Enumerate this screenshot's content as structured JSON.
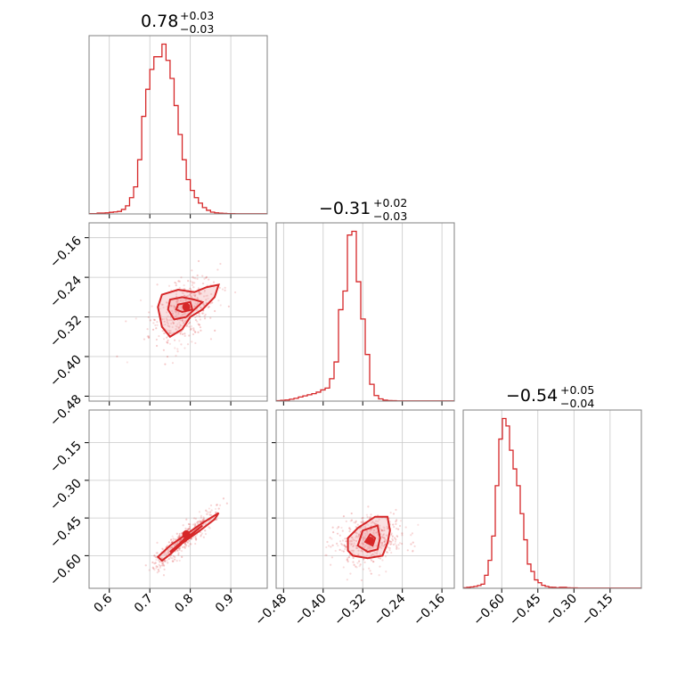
{
  "colors": {
    "accent": "#d62728",
    "frame": "#808080",
    "grid": "#c8c8c8"
  },
  "chart_data": [
    {
      "type": "histogram",
      "panel": "p1",
      "title_value": "0.78",
      "title_plus": "+0.03",
      "title_minus": "−0.03",
      "xlim": [
        0.55,
        0.99
      ],
      "ticks": [
        0.6,
        0.7,
        0.8,
        0.9
      ],
      "tick_labels": [
        "0.6",
        "0.7",
        "0.8",
        "0.9"
      ],
      "bin_start": 0.55,
      "bin_width": 0.01,
      "values": [
        0.2,
        0.2,
        0.5,
        0.5,
        0.6,
        0.9,
        1.1,
        1.4,
        2.5,
        4.5,
        9,
        15,
        30,
        54,
        69,
        80,
        87,
        87,
        94,
        85,
        75,
        60,
        44,
        30,
        19,
        13,
        9,
        6,
        3.5,
        2,
        1,
        0.6,
        0.4,
        0.3,
        0.2,
        0.2,
        0.1,
        0.1,
        0.1,
        0.1,
        0.1,
        0.1,
        0.1,
        0.1
      ]
    },
    {
      "type": "histogram",
      "panel": "p2",
      "title_value": "−0.31",
      "title_plus": "+0.02",
      "title_minus": "−0.03",
      "xlim": [
        -0.495,
        -0.135
      ],
      "ticks": [
        -0.48,
        -0.4,
        -0.32,
        -0.24,
        -0.16
      ],
      "tick_labels": [
        "−0.48",
        "−0.40",
        "−0.32",
        "−0.24",
        "−0.16"
      ],
      "bin_start": -0.495,
      "bin_width": 0.009,
      "values": [
        0.2,
        0.4,
        0.6,
        1,
        1.5,
        2.2,
        2.8,
        3.4,
        4,
        4.8,
        6,
        7,
        12,
        21,
        49,
        59,
        89,
        91,
        64,
        44,
        25,
        9,
        3,
        1.2,
        0.5,
        0.3,
        0.2,
        0.1,
        0.1,
        0.1,
        0.1,
        0.1,
        0.1,
        0.1,
        0.1,
        0.1,
        0.1,
        0.1,
        0.1,
        0.1
      ]
    },
    {
      "type": "histogram",
      "panel": "p3",
      "title_value": "−0.54",
      "title_plus": "+0.05",
      "title_minus": "−0.04",
      "xlim": [
        -0.76,
        -0.02
      ],
      "ticks": [
        -0.6,
        -0.45,
        -0.3,
        -0.15
      ],
      "tick_labels": [
        "−0.60",
        "−0.45",
        "−0.30",
        "−0.15"
      ],
      "bin_start": -0.76,
      "bin_width": 0.0148,
      "values": [
        0.3,
        0.5,
        0.7,
        1,
        1.5,
        2.2,
        7,
        15,
        28,
        55,
        80,
        91,
        87,
        74,
        64,
        55,
        40,
        26,
        13,
        9,
        4.5,
        3,
        1.6,
        1,
        0.6,
        0.5,
        0.3,
        0.5,
        0.5,
        0.3,
        0.2,
        0.2,
        0.1,
        0.1,
        0.1,
        0.1,
        0.1,
        0.1,
        0.1,
        0.1,
        0.1,
        0.1,
        0.1,
        0.1,
        0.1,
        0.1,
        0.1,
        0.1,
        0.1,
        0.1
      ]
    },
    {
      "type": "scatter",
      "panel": "p21",
      "xlim": [
        0.55,
        0.99
      ],
      "ylim": [
        -0.49,
        -0.13
      ],
      "yticks": [
        -0.16,
        -0.24,
        -0.32,
        -0.4,
        -0.48
      ],
      "ytick_labels": [
        "−0.16",
        "−0.24",
        "−0.32",
        "−0.40",
        "−0.48"
      ],
      "center": [
        0.78,
        -0.31
      ],
      "spread": [
        0.04,
        0.035
      ],
      "correlation": 0.45,
      "peak": [
        0.79,
        -0.3
      ],
      "contours": [
        [
          [
            0.73,
            -0.275
          ],
          [
            0.77,
            -0.265
          ],
          [
            0.81,
            -0.27
          ],
          [
            0.84,
            -0.26
          ],
          [
            0.87,
            -0.255
          ],
          [
            0.86,
            -0.28
          ],
          [
            0.83,
            -0.305
          ],
          [
            0.8,
            -0.32
          ],
          [
            0.78,
            -0.345
          ],
          [
            0.75,
            -0.36
          ],
          [
            0.73,
            -0.34
          ],
          [
            0.72,
            -0.3
          ]
        ],
        [
          [
            0.75,
            -0.285
          ],
          [
            0.78,
            -0.28
          ],
          [
            0.81,
            -0.285
          ],
          [
            0.83,
            -0.29
          ],
          [
            0.81,
            -0.305
          ],
          [
            0.79,
            -0.32
          ],
          [
            0.76,
            -0.325
          ],
          [
            0.745,
            -0.305
          ]
        ],
        [
          [
            0.77,
            -0.295
          ],
          [
            0.8,
            -0.29
          ],
          [
            0.805,
            -0.305
          ],
          [
            0.78,
            -0.31
          ],
          [
            0.765,
            -0.305
          ]
        ]
      ]
    },
    {
      "type": "scatter",
      "panel": "p31",
      "xlim": [
        0.55,
        0.99
      ],
      "ylim": [
        -0.73,
        -0.02
      ],
      "yticks": [
        -0.15,
        -0.3,
        -0.45,
        -0.6
      ],
      "ytick_labels": [
        "−0.15",
        "−0.30",
        "−0.45",
        "−0.60"
      ],
      "center": [
        0.78,
        -0.54
      ],
      "spread": [
        0.04,
        0.06
      ],
      "correlation": 0.93,
      "peak": [
        0.79,
        -0.515
      ],
      "contours": [
        [
          [
            0.72,
            -0.605
          ],
          [
            0.75,
            -0.56
          ],
          [
            0.79,
            -0.515
          ],
          [
            0.83,
            -0.47
          ],
          [
            0.87,
            -0.43
          ],
          [
            0.86,
            -0.455
          ],
          [
            0.82,
            -0.505
          ],
          [
            0.78,
            -0.55
          ],
          [
            0.75,
            -0.595
          ],
          [
            0.73,
            -0.62
          ]
        ],
        [
          [
            0.75,
            -0.585
          ],
          [
            0.79,
            -0.53
          ],
          [
            0.83,
            -0.48
          ],
          [
            0.815,
            -0.5
          ],
          [
            0.78,
            -0.55
          ],
          [
            0.76,
            -0.58
          ]
        ],
        [
          [
            0.77,
            -0.56
          ],
          [
            0.8,
            -0.52
          ],
          [
            0.79,
            -0.525
          ],
          [
            0.775,
            -0.55
          ]
        ]
      ]
    },
    {
      "type": "scatter",
      "panel": "p32",
      "xlim": [
        -0.495,
        -0.135
      ],
      "ylim": [
        -0.73,
        -0.02
      ],
      "xticks": [
        -0.48,
        -0.4,
        -0.32,
        -0.24,
        -0.16
      ],
      "xtick_labels": [
        "−0.48",
        "−0.40",
        "−0.32",
        "−0.24",
        "−0.16"
      ],
      "center": [
        -0.31,
        -0.54
      ],
      "spread": [
        0.035,
        0.05
      ],
      "correlation": 0.1,
      "peak": [
        -0.305,
        -0.54
      ],
      "contours": [
        [
          [
            -0.35,
            -0.58
          ],
          [
            -0.35,
            -0.53
          ],
          [
            -0.33,
            -0.49
          ],
          [
            -0.295,
            -0.445
          ],
          [
            -0.27,
            -0.445
          ],
          [
            -0.265,
            -0.5
          ],
          [
            -0.27,
            -0.55
          ],
          [
            -0.28,
            -0.6
          ],
          [
            -0.31,
            -0.61
          ],
          [
            -0.34,
            -0.6
          ]
        ],
        [
          [
            -0.33,
            -0.56
          ],
          [
            -0.32,
            -0.5
          ],
          [
            -0.29,
            -0.48
          ],
          [
            -0.285,
            -0.53
          ],
          [
            -0.29,
            -0.575
          ],
          [
            -0.31,
            -0.585
          ]
        ],
        [
          [
            -0.315,
            -0.545
          ],
          [
            -0.305,
            -0.515
          ],
          [
            -0.295,
            -0.53
          ],
          [
            -0.3,
            -0.56
          ]
        ]
      ]
    }
  ]
}
